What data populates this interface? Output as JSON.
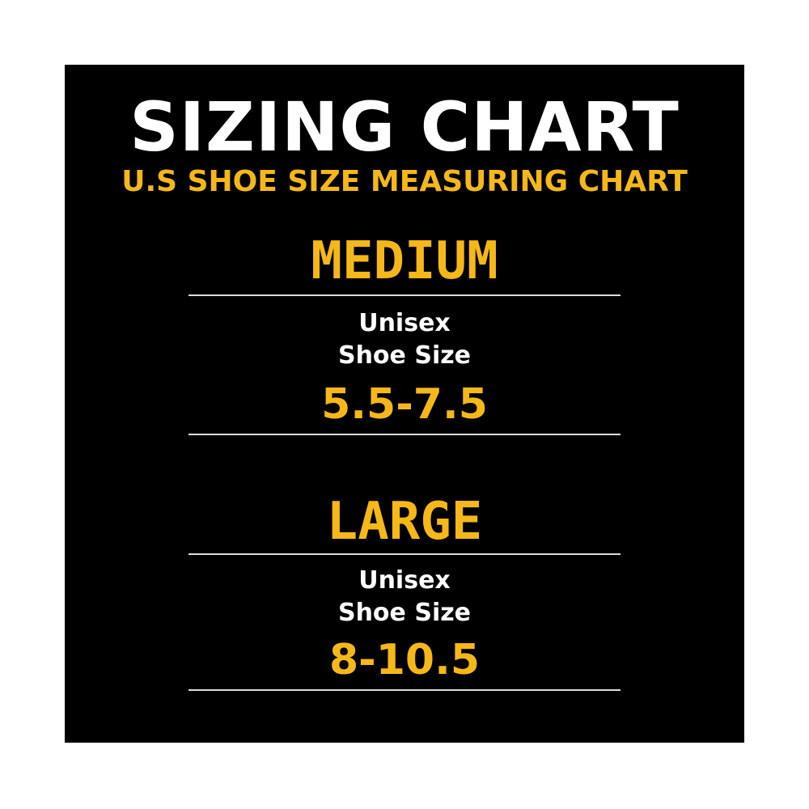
{
  "header": {
    "title": "SIZING CHART",
    "subtitle": "U.S SHOE SIZE MEASURING CHART"
  },
  "sizes": [
    {
      "name": "MEDIUM",
      "label_line1": "Unisex",
      "label_line2": "Shoe Size",
      "range": "5.5-7.5"
    },
    {
      "name": "LARGE",
      "label_line1": "Unisex",
      "label_line2": "Shoe Size",
      "range": "8-10.5"
    }
  ]
}
